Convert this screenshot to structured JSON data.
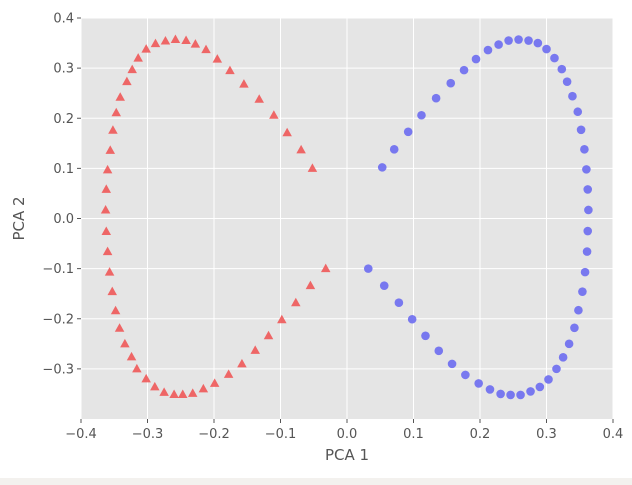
{
  "chart_data": {
    "type": "scatter",
    "title": "",
    "xlabel": "PCA 1",
    "ylabel": "PCA 2",
    "xlim": [
      -0.4,
      0.4
    ],
    "ylim": [
      -0.4,
      0.4
    ],
    "xticks": [
      -0.4,
      -0.3,
      -0.2,
      -0.1,
      0.0,
      0.1,
      0.2,
      0.3,
      0.4
    ],
    "yticks": [
      -0.3,
      -0.2,
      -0.1,
      0.0,
      0.1,
      0.2,
      0.3,
      0.4
    ],
    "xtick_labels": [
      "−0.4",
      "−0.3",
      "−0.2",
      "−0.1",
      "0.0",
      "0.1",
      "0.2",
      "0.3",
      "0.4"
    ],
    "ytick_labels": [
      "−0.3",
      "−0.2",
      "−0.1",
      "0.0",
      "0.1",
      "0.2",
      "0.3",
      "0.4"
    ],
    "grid": true,
    "style": {
      "background": "#e5e5e5",
      "grid_color": "#ffffff",
      "label_color": "#555555"
    },
    "series": [
      {
        "marker": "triangle",
        "color": "#f05050",
        "points": [
          [
            -0.052,
            0.1
          ],
          [
            -0.069,
            0.137
          ],
          [
            -0.09,
            0.171
          ],
          [
            -0.11,
            0.206
          ],
          [
            -0.132,
            0.238
          ],
          [
            -0.155,
            0.268
          ],
          [
            -0.176,
            0.295
          ],
          [
            -0.195,
            0.318
          ],
          [
            -0.212,
            0.337
          ],
          [
            -0.228,
            0.348
          ],
          [
            -0.242,
            0.355
          ],
          [
            -0.258,
            0.357
          ],
          [
            -0.273,
            0.354
          ],
          [
            -0.288,
            0.349
          ],
          [
            -0.302,
            0.338
          ],
          [
            -0.314,
            0.32
          ],
          [
            -0.323,
            0.297
          ],
          [
            -0.331,
            0.273
          ],
          [
            -0.341,
            0.242
          ],
          [
            -0.347,
            0.211
          ],
          [
            -0.352,
            0.176
          ],
          [
            -0.356,
            0.136
          ],
          [
            -0.36,
            0.097
          ],
          [
            -0.362,
            0.058
          ],
          [
            -0.363,
            0.017
          ],
          [
            -0.362,
            -0.026
          ],
          [
            -0.36,
            -0.066
          ],
          [
            -0.357,
            -0.107
          ],
          [
            -0.353,
            -0.146
          ],
          [
            -0.348,
            -0.184
          ],
          [
            -0.342,
            -0.219
          ],
          [
            -0.334,
            -0.25
          ],
          [
            -0.324,
            -0.276
          ],
          [
            -0.316,
            -0.3
          ],
          [
            -0.302,
            -0.32
          ],
          [
            -0.289,
            -0.336
          ],
          [
            -0.275,
            -0.347
          ],
          [
            -0.26,
            -0.351
          ],
          [
            -0.247,
            -0.351
          ],
          [
            -0.232,
            -0.349
          ],
          [
            -0.216,
            -0.34
          ],
          [
            -0.199,
            -0.329
          ],
          [
            -0.178,
            -0.311
          ],
          [
            -0.158,
            -0.29
          ],
          [
            -0.138,
            -0.263
          ],
          [
            -0.118,
            -0.234
          ],
          [
            -0.098,
            -0.202
          ],
          [
            -0.077,
            -0.168
          ],
          [
            -0.055,
            -0.134
          ],
          [
            -0.032,
            -0.1
          ]
        ]
      },
      {
        "marker": "circle",
        "color": "#6b6bf0",
        "points": [
          [
            0.053,
            0.102
          ],
          [
            0.071,
            0.138
          ],
          [
            0.092,
            0.173
          ],
          [
            0.112,
            0.206
          ],
          [
            0.134,
            0.24
          ],
          [
            0.156,
            0.27
          ],
          [
            0.176,
            0.296
          ],
          [
            0.194,
            0.318
          ],
          [
            0.212,
            0.336
          ],
          [
            0.228,
            0.347
          ],
          [
            0.243,
            0.355
          ],
          [
            0.258,
            0.357
          ],
          [
            0.273,
            0.355
          ],
          [
            0.287,
            0.35
          ],
          [
            0.3,
            0.338
          ],
          [
            0.312,
            0.32
          ],
          [
            0.323,
            0.298
          ],
          [
            0.331,
            0.273
          ],
          [
            0.339,
            0.244
          ],
          [
            0.347,
            0.213
          ],
          [
            0.352,
            0.177
          ],
          [
            0.357,
            0.138
          ],
          [
            0.36,
            0.098
          ],
          [
            0.362,
            0.058
          ],
          [
            0.363,
            0.017
          ],
          [
            0.362,
            -0.025
          ],
          [
            0.361,
            -0.066
          ],
          [
            0.358,
            -0.107
          ],
          [
            0.354,
            -0.146
          ],
          [
            0.348,
            -0.183
          ],
          [
            0.342,
            -0.218
          ],
          [
            0.334,
            -0.25
          ],
          [
            0.325,
            -0.277
          ],
          [
            0.315,
            -0.3
          ],
          [
            0.303,
            -0.321
          ],
          [
            0.29,
            -0.336
          ],
          [
            0.276,
            -0.345
          ],
          [
            0.261,
            -0.352
          ],
          [
            0.246,
            -0.352
          ],
          [
            0.231,
            -0.35
          ],
          [
            0.215,
            -0.341
          ],
          [
            0.198,
            -0.329
          ],
          [
            0.178,
            -0.312
          ],
          [
            0.158,
            -0.29
          ],
          [
            0.138,
            -0.264
          ],
          [
            0.118,
            -0.234
          ],
          [
            0.098,
            -0.201
          ],
          [
            0.078,
            -0.168
          ],
          [
            0.056,
            -0.134
          ],
          [
            0.032,
            -0.1
          ]
        ]
      }
    ]
  }
}
